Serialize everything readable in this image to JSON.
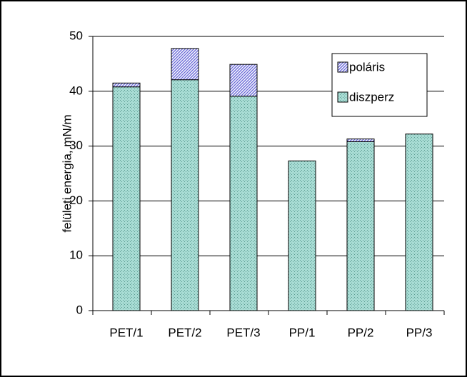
{
  "chart_data": {
    "type": "stacked_bar",
    "y_label": "felületi energia, mN/m",
    "categories": [
      "PET/1",
      "PET/2",
      "PET/3",
      "PP/1",
      "PP/2",
      "PP/3"
    ],
    "series": [
      {
        "name": "diszperz",
        "color": "#a8dcd4",
        "values": [
          40.8,
          42.1,
          39.1,
          27.3,
          30.8,
          32.2
        ]
      },
      {
        "name": "poláris",
        "color": "#6a6ad8",
        "values": [
          0.7,
          5.7,
          5.8,
          0,
          0.5,
          0
        ]
      }
    ],
    "ylim": [
      0,
      50
    ],
    "yticks": [
      0,
      10,
      20,
      30,
      40,
      50
    ],
    "grid": true,
    "legend": "upper right"
  }
}
